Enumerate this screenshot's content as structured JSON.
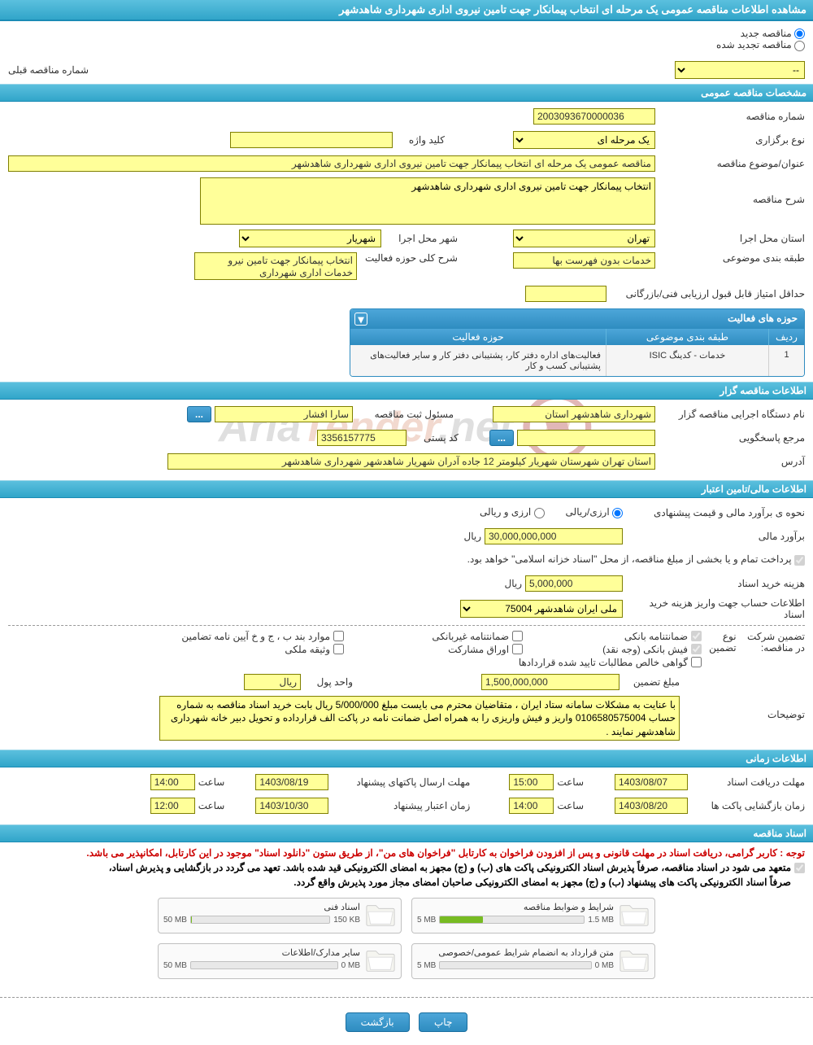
{
  "colors": {
    "header_grad_top": "#5bc0de",
    "header_grad_bottom": "#31a5c9",
    "field_bg": "#ffff99",
    "field_border": "#808000",
    "button_top": "#4da6d9",
    "button_bottom": "#2e8cc0"
  },
  "page_title": "مشاهده اطلاعات مناقصه عمومی یک مرحله ای انتخاب پیمانکار جهت تامین نیروی اداری شهرداری شاهدشهر",
  "top": {
    "radio_new": "مناقصه جدید",
    "radio_renew": "مناقصه تجدید شده",
    "prev_label": "شماره مناقصه قبلی",
    "prev_value": "--"
  },
  "sections": {
    "general": "مشخصات مناقصه عمومی",
    "publisher": "اطلاعات مناقصه گزار",
    "financial": "اطلاعات مالی/تامین اعتبار",
    "timing": "اطلاعات زمانی",
    "docs": "اسناد مناقصه"
  },
  "general": {
    "number_label": "شماره مناقصه",
    "number": "2003093670000036",
    "type_label": "نوع برگزاری",
    "type_value": "یک مرحله ای",
    "keyword_label": "کلید واژه",
    "keyword": "",
    "subject_label": "عنوان/موضوع مناقصه",
    "subject": "مناقصه عمومی یک مرحله ای انتخاب پیمانکار جهت تامین نیروی اداری شهرداری شاهدشهر",
    "desc_label": "شرح مناقصه",
    "desc": "انتخاب پیمانکار جهت تامین نیروی اداری شهرداری شاهدشهر",
    "province_label": "استان محل اجرا",
    "province": "تهران",
    "city_label": "شهر محل اجرا",
    "city": "شهریار",
    "category_label": "طبقه بندی موضوعی",
    "category": "خدمات بدون فهرست بها",
    "scope_label": "شرح کلی حوزه فعالیت",
    "scope": "انتخاب پیمانکار جهت تامین نیرو خدمات اداری شهرداری",
    "min_score_label": "حداقل امتیاز قابل قبول ارزیابی فنی/بازرگانی",
    "min_score": ""
  },
  "activity_table": {
    "title": "حوزه های فعالیت",
    "col_row": "ردیف",
    "col_category": "طبقه بندی موضوعی",
    "col_scope": "حوزه فعالیت",
    "rows": [
      {
        "n": "1",
        "category": "خدمات - کدینگ ISIC",
        "scope": "فعالیت‌های  اداره دفتر کار، پشتیبانی دفتر کار و سایر فعالیت‌های پشتیبانی کسب و کار"
      }
    ]
  },
  "publisher": {
    "exec_label": "نام دستگاه اجرایی مناقصه گزار",
    "exec": "شهرداری شاهدشهر استان",
    "reg_resp_label": "مسئول ثبت مناقصه",
    "reg_resp": "سارا افشار",
    "ellipsis": "...",
    "respond_label": "مرجع پاسخگویی",
    "respond": "",
    "postal_label": "کد پستی",
    "postal": "3356157775",
    "address_label": "آدرس",
    "address": "استان تهران شهرستان شهریار کیلومتر 12 جاده آدران شهریار شاهدشهر شهرداری شاهدشهر"
  },
  "financial": {
    "est_label": "نحوه ی برآورد مالی و قیمت پیشنهادی",
    "radio_fx": "ارزی/ریالی",
    "radio_rial": "ارزی و ریالی",
    "est_amount_label": "برآورد مالی",
    "est_amount": "30,000,000,000",
    "currency": "ریال",
    "treasury_note": "پرداخت تمام و یا بخشی از مبلغ مناقصه، از محل \"اسناد خزانه اسلامی\" خواهد بود.",
    "doc_fee_label": "هزینه خرید اسناد",
    "doc_fee": "5,000,000",
    "account_label": "اطلاعات حساب جهت واریز هزینه خرید اسناد",
    "account": "ملی ایران شاهدشهر 75004",
    "guarantee_label": "تضمین شرکت در مناقصه:",
    "guarantee_type_label": "نوع تضمین",
    "check_bank_guar": "ضمانتنامه بانکی",
    "check_nonbank_guar": "ضمانتنامه غیربانکی",
    "check_bpjv": "موارد بند ب ، ج و خ آیین نامه تضامین",
    "check_bank_receipt": "فیش بانکی (وجه نقد)",
    "check_partnership": "اوراق مشارکت",
    "check_property": "وثیقه ملکی",
    "check_net_claims": "گواهی خالص مطالبات تایید شده قراردادها",
    "guar_amount_label": "مبلغ تضمین",
    "guar_amount": "1,500,000,000",
    "unit_label": "واحد پول",
    "unit": "ریال",
    "notes_label": "توضیحات",
    "notes": "با عنایت به مشکلات سامانه ستاد ایران ، متقاضیان محترم می بایست مبلغ 5/000/000 ریال بابت خرید اسناد مناقصه به شماره حساب 0106580575004 واریز و فیش واریزی را به همراه اصل ضمانت نامه در پاکت الف قرارداده و تحویل دبیر خانه شهرداری شاهدشهر نمایند ."
  },
  "timing": {
    "receive_label": "مهلت دریافت اسناد",
    "receive_date": "1403/08/07",
    "receive_time_label": "ساعت",
    "receive_time": "15:00",
    "submit_label": "مهلت ارسال پاکتهای پیشنهاد",
    "submit_date": "1403/08/19",
    "submit_time_label": "ساعت",
    "submit_time": "14:00",
    "open_label": "زمان بازگشایی پاکت ها",
    "open_date": "1403/08/20",
    "open_time_label": "ساعت",
    "open_time": "14:00",
    "validity_label": "زمان اعتبار پیشنهاد",
    "validity_date": "1403/10/30",
    "validity_time_label": "ساعت",
    "validity_time": "12:00"
  },
  "docs": {
    "notice_red": "توجه : کاربر گرامی، دریافت اسناد در مهلت قانونی و پس از افزودن فراخوان به کارتابل \"فراخوان های من\"، از طریق ستون \"دانلود اسناد\" موجود در این کارتابل، امکانپذیر می باشد.",
    "notice_line1": "متعهد می شود در اسناد مناقصه، صرفاً پذیرش اسناد الکترونیکی پاکت های (ب) و (ج) مجهز به امضای الکترونیکی قید شده باشد. تعهد می گردد در بازگشایی و پذیرش اسناد،",
    "notice_line2": "صرفاً اسناد الکترونیکی پاکت های پیشنهاد (ب) و (ج) مجهز به امضای الکترونیکی صاحبان امضای مجاز مورد پذیرش واقع گردد.",
    "cards": [
      {
        "title": "شرایط و ضوابط مناقصه",
        "used": "1.5 MB",
        "cap": "5 MB",
        "pct": 30
      },
      {
        "title": "اسناد فنی",
        "used": "150 KB",
        "cap": "50 MB",
        "pct": 0.3
      },
      {
        "title": "متن قرارداد به انضمام شرایط عمومی/خصوصی",
        "used": "0 MB",
        "cap": "5 MB",
        "pct": 0
      },
      {
        "title": "سایر مدارک/اطلاعات",
        "used": "0 MB",
        "cap": "50 MB",
        "pct": 0
      }
    ]
  },
  "buttons": {
    "print": "چاپ",
    "back": "بازگشت"
  },
  "watermark": {
    "text_plain": "ria",
    "text_orange": "Tender",
    "text_tail": "net"
  }
}
